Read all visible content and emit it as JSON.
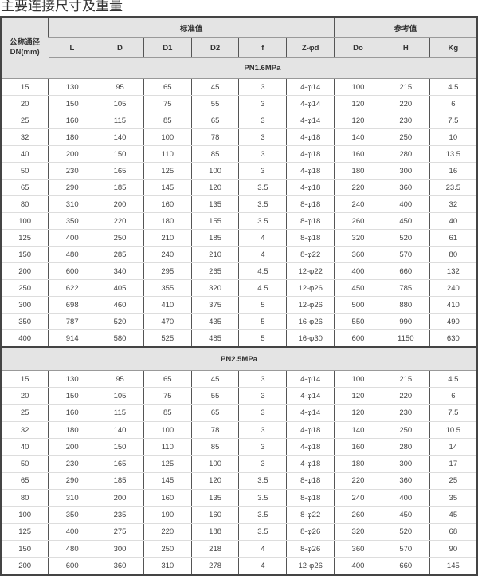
{
  "title": "主要连接尺寸及重量",
  "header": {
    "dn_label_line1": "公称通径",
    "dn_label_line2": "DN(mm)",
    "group_standard": "标准值",
    "group_reference": "参考值",
    "columns": [
      "L",
      "D",
      "D1",
      "D2",
      "f",
      "Z-φd",
      "Do",
      "H",
      "Kg"
    ]
  },
  "sections": [
    {
      "label": "PN1.6MPa",
      "rows": [
        [
          "15",
          "130",
          "95",
          "65",
          "45",
          "3",
          "4-φ14",
          "100",
          "215",
          "4.5"
        ],
        [
          "20",
          "150",
          "105",
          "75",
          "55",
          "3",
          "4-φ14",
          "120",
          "220",
          "6"
        ],
        [
          "25",
          "160",
          "115",
          "85",
          "65",
          "3",
          "4-φ14",
          "120",
          "230",
          "7.5"
        ],
        [
          "32",
          "180",
          "140",
          "100",
          "78",
          "3",
          "4-φ18",
          "140",
          "250",
          "10"
        ],
        [
          "40",
          "200",
          "150",
          "110",
          "85",
          "3",
          "4-φ18",
          "160",
          "280",
          "13.5"
        ],
        [
          "50",
          "230",
          "165",
          "125",
          "100",
          "3",
          "4-φ18",
          "180",
          "300",
          "16"
        ],
        [
          "65",
          "290",
          "185",
          "145",
          "120",
          "3.5",
          "4-φ18",
          "220",
          "360",
          "23.5"
        ],
        [
          "80",
          "310",
          "200",
          "160",
          "135",
          "3.5",
          "8-φ18",
          "240",
          "400",
          "32"
        ],
        [
          "100",
          "350",
          "220",
          "180",
          "155",
          "3.5",
          "8-φ18",
          "260",
          "450",
          "40"
        ],
        [
          "125",
          "400",
          "250",
          "210",
          "185",
          "4",
          "8-φ18",
          "320",
          "520",
          "61"
        ],
        [
          "150",
          "480",
          "285",
          "240",
          "210",
          "4",
          "8-φ22",
          "360",
          "570",
          "80"
        ],
        [
          "200",
          "600",
          "340",
          "295",
          "265",
          "4.5",
          "12-φ22",
          "400",
          "660",
          "132"
        ],
        [
          "250",
          "622",
          "405",
          "355",
          "320",
          "4.5",
          "12-φ26",
          "450",
          "785",
          "240"
        ],
        [
          "300",
          "698",
          "460",
          "410",
          "375",
          "5",
          "12-φ26",
          "500",
          "880",
          "410"
        ],
        [
          "350",
          "787",
          "520",
          "470",
          "435",
          "5",
          "16-φ26",
          "550",
          "990",
          "490"
        ],
        [
          "400",
          "914",
          "580",
          "525",
          "485",
          "5",
          "16-φ30",
          "600",
          "1150",
          "630"
        ]
      ]
    },
    {
      "label": "PN2.5MPa",
      "rows": [
        [
          "15",
          "130",
          "95",
          "65",
          "45",
          "3",
          "4-φ14",
          "100",
          "215",
          "4.5"
        ],
        [
          "20",
          "150",
          "105",
          "75",
          "55",
          "3",
          "4-φ14",
          "120",
          "220",
          "6"
        ],
        [
          "25",
          "160",
          "115",
          "85",
          "65",
          "3",
          "4-φ14",
          "120",
          "230",
          "7.5"
        ],
        [
          "32",
          "180",
          "140",
          "100",
          "78",
          "3",
          "4-φ18",
          "140",
          "250",
          "10.5"
        ],
        [
          "40",
          "200",
          "150",
          "110",
          "85",
          "3",
          "4-φ18",
          "160",
          "280",
          "14"
        ],
        [
          "50",
          "230",
          "165",
          "125",
          "100",
          "3",
          "4-φ18",
          "180",
          "300",
          "17"
        ],
        [
          "65",
          "290",
          "185",
          "145",
          "120",
          "3.5",
          "8-φ18",
          "220",
          "360",
          "25"
        ],
        [
          "80",
          "310",
          "200",
          "160",
          "135",
          "3.5",
          "8-φ18",
          "240",
          "400",
          "35"
        ],
        [
          "100",
          "350",
          "235",
          "190",
          "160",
          "3.5",
          "8-φ22",
          "260",
          "450",
          "45"
        ],
        [
          "125",
          "400",
          "275",
          "220",
          "188",
          "3.5",
          "8-φ26",
          "320",
          "520",
          "68"
        ],
        [
          "150",
          "480",
          "300",
          "250",
          "218",
          "4",
          "8-φ26",
          "360",
          "570",
          "90"
        ],
        [
          "200",
          "600",
          "360",
          "310",
          "278",
          "4",
          "12-φ26",
          "400",
          "660",
          "145"
        ]
      ]
    }
  ]
}
